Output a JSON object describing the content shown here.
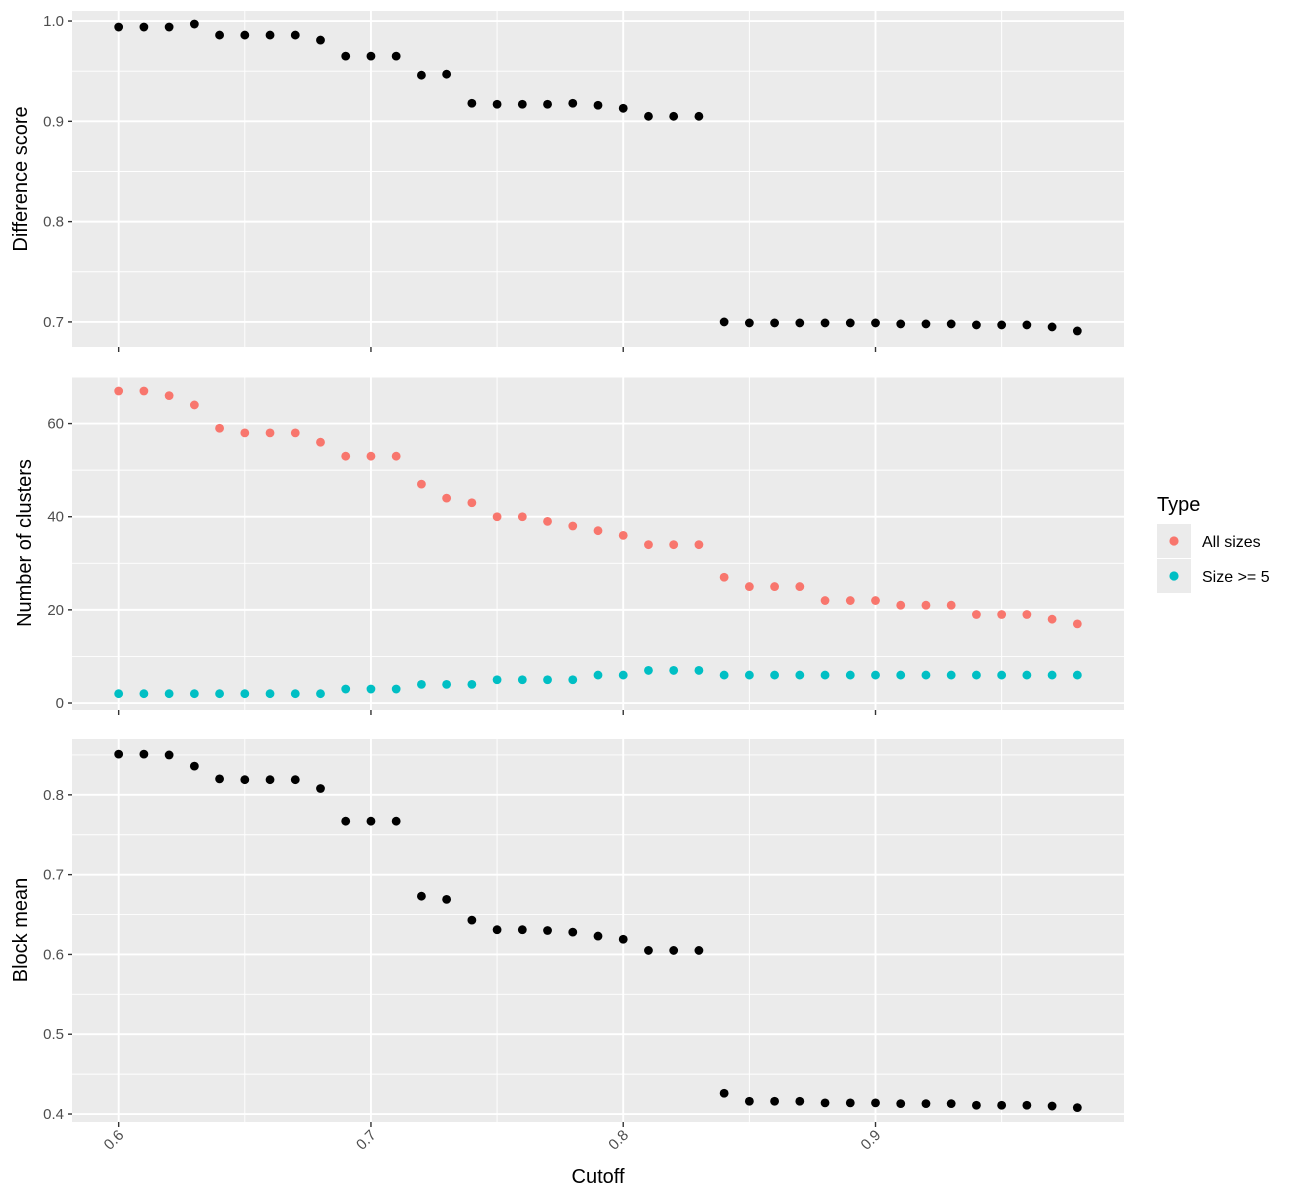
{
  "chart_data": [
    {
      "type": "scatter",
      "panel": "top",
      "ylabel": "Difference score",
      "ylim": [
        0.675,
        1.01
      ],
      "yticks": [
        0.7,
        0.8,
        0.9,
        1.0
      ],
      "ytick_labels": [
        "0.7",
        "0.8",
        "0.9",
        "1.0"
      ],
      "grid": true,
      "series": [
        {
          "color": "#000000",
          "x": [
            0.6,
            0.61,
            0.62,
            0.63,
            0.64,
            0.65,
            0.66,
            0.67,
            0.68,
            0.69,
            0.7,
            0.71,
            0.72,
            0.73,
            0.74,
            0.75,
            0.76,
            0.77,
            0.78,
            0.79,
            0.8,
            0.81,
            0.82,
            0.83,
            0.84,
            0.85,
            0.86,
            0.87,
            0.88,
            0.89,
            0.9,
            0.91,
            0.92,
            0.93,
            0.94,
            0.95,
            0.96,
            0.97,
            0.98
          ],
          "y": [
            0.994,
            0.994,
            0.994,
            0.997,
            0.986,
            0.986,
            0.986,
            0.986,
            0.981,
            0.965,
            0.965,
            0.965,
            0.946,
            0.947,
            0.918,
            0.917,
            0.917,
            0.917,
            0.918,
            0.916,
            0.913,
            0.905,
            0.905,
            0.905,
            0.7,
            0.699,
            0.699,
            0.699,
            0.699,
            0.699,
            0.699,
            0.698,
            0.698,
            0.698,
            0.697,
            0.697,
            0.697,
            0.695,
            0.691
          ]
        }
      ]
    },
    {
      "type": "scatter",
      "panel": "middle",
      "ylabel": "Number of clusters",
      "ylim": [
        -1.5,
        70
      ],
      "yticks": [
        0,
        20,
        40,
        60
      ],
      "ytick_labels": [
        "0",
        "20",
        "40",
        "60"
      ],
      "grid": true,
      "legend": {
        "title": "Type",
        "position": "right"
      },
      "series": [
        {
          "name": "All sizes",
          "color": "#F8766D",
          "x": [
            0.6,
            0.61,
            0.62,
            0.63,
            0.64,
            0.65,
            0.66,
            0.67,
            0.68,
            0.69,
            0.7,
            0.71,
            0.72,
            0.73,
            0.74,
            0.75,
            0.76,
            0.77,
            0.78,
            0.79,
            0.8,
            0.81,
            0.82,
            0.83,
            0.84,
            0.85,
            0.86,
            0.87,
            0.88,
            0.89,
            0.9,
            0.91,
            0.92,
            0.93,
            0.94,
            0.95,
            0.96,
            0.97,
            0.98
          ],
          "y": [
            67,
            67,
            66,
            64,
            59,
            58,
            58,
            58,
            56,
            53,
            53,
            53,
            47,
            44,
            43,
            40,
            40,
            39,
            38,
            37,
            36,
            34,
            34,
            34,
            27,
            25,
            25,
            25,
            22,
            22,
            22,
            21,
            21,
            21,
            19,
            19,
            19,
            18,
            17
          ]
        },
        {
          "name": "Size >= 5",
          "color": "#00BFC4",
          "x": [
            0.6,
            0.61,
            0.62,
            0.63,
            0.64,
            0.65,
            0.66,
            0.67,
            0.68,
            0.69,
            0.7,
            0.71,
            0.72,
            0.73,
            0.74,
            0.75,
            0.76,
            0.77,
            0.78,
            0.79,
            0.8,
            0.81,
            0.82,
            0.83,
            0.84,
            0.85,
            0.86,
            0.87,
            0.88,
            0.89,
            0.9,
            0.91,
            0.92,
            0.93,
            0.94,
            0.95,
            0.96,
            0.97,
            0.98
          ],
          "y": [
            2,
            2,
            2,
            2,
            2,
            2,
            2,
            2,
            2,
            3,
            3,
            3,
            4,
            4,
            4,
            5,
            5,
            5,
            5,
            6,
            6,
            7,
            7,
            7,
            6,
            6,
            6,
            6,
            6,
            6,
            6,
            6,
            6,
            6,
            6,
            6,
            6,
            6,
            6
          ]
        }
      ]
    },
    {
      "type": "scatter",
      "panel": "bottom",
      "ylabel": "Block mean",
      "xlabel": "Cutoff",
      "ylim": [
        0.39,
        0.87
      ],
      "yticks": [
        0.4,
        0.5,
        0.6,
        0.7,
        0.8
      ],
      "ytick_labels": [
        "0.4",
        "0.5",
        "0.6",
        "0.7",
        "0.8"
      ],
      "grid": true,
      "series": [
        {
          "color": "#000000",
          "x": [
            0.6,
            0.61,
            0.62,
            0.63,
            0.64,
            0.65,
            0.66,
            0.67,
            0.68,
            0.69,
            0.7,
            0.71,
            0.72,
            0.73,
            0.74,
            0.75,
            0.76,
            0.77,
            0.78,
            0.79,
            0.8,
            0.81,
            0.82,
            0.83,
            0.84,
            0.85,
            0.86,
            0.87,
            0.88,
            0.89,
            0.9,
            0.91,
            0.92,
            0.93,
            0.94,
            0.95,
            0.96,
            0.97,
            0.98
          ],
          "y": [
            0.851,
            0.851,
            0.85,
            0.836,
            0.82,
            0.819,
            0.819,
            0.819,
            0.808,
            0.767,
            0.767,
            0.767,
            0.673,
            0.669,
            0.643,
            0.631,
            0.631,
            0.63,
            0.628,
            0.623,
            0.619,
            0.605,
            0.605,
            0.605,
            0.426,
            0.416,
            0.416,
            0.416,
            0.414,
            0.414,
            0.414,
            0.413,
            0.413,
            0.413,
            0.411,
            0.411,
            0.411,
            0.41,
            0.408
          ]
        }
      ]
    }
  ],
  "x_axis": {
    "label": "Cutoff",
    "xlim": [
      0.5815,
      0.9985
    ],
    "ticks": [
      0.6,
      0.7,
      0.8,
      0.9
    ],
    "tick_labels": [
      "0.6",
      "0.7",
      "0.8",
      "0.9"
    ]
  }
}
